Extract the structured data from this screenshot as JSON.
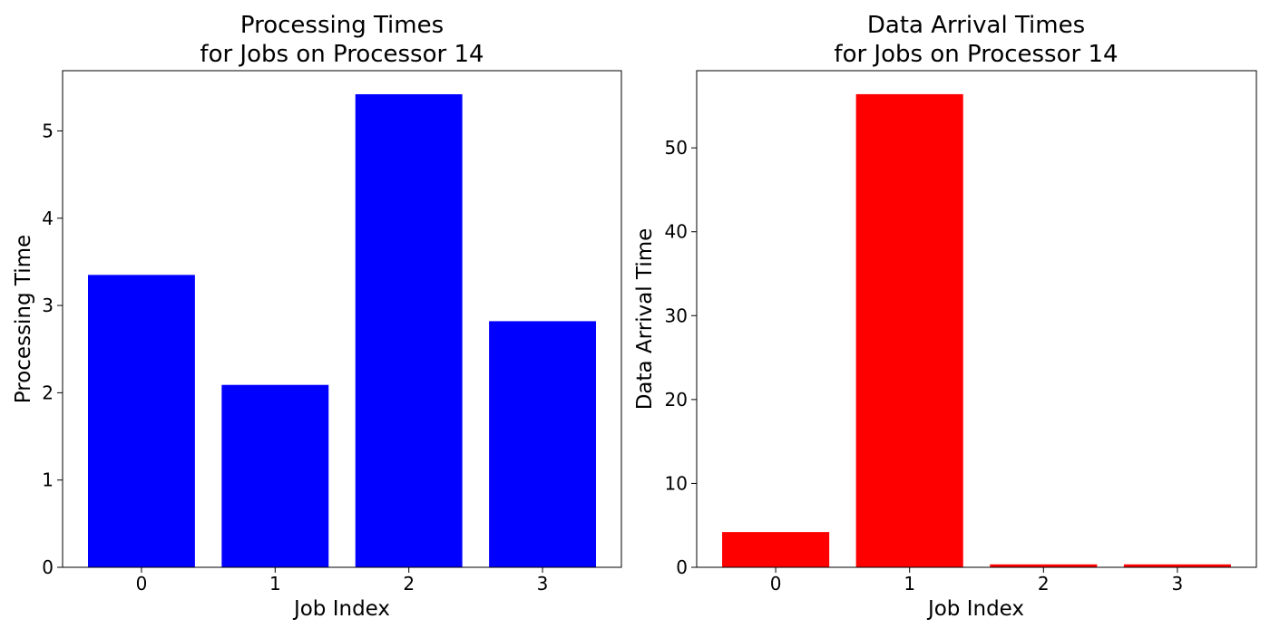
{
  "chart_data": [
    {
      "type": "bar",
      "title_lines": [
        "Processing Times",
        "for Jobs on Processor 14"
      ],
      "xlabel": "Job Index",
      "ylabel": "Processing Time",
      "categories": [
        "0",
        "1",
        "2",
        "3"
      ],
      "values": [
        3.35,
        2.09,
        5.42,
        2.82
      ],
      "color": "#0000ff",
      "ylim": [
        0,
        5.69
      ],
      "yticks": [
        0,
        1,
        2,
        3,
        4,
        5
      ],
      "grid": false
    },
    {
      "type": "bar",
      "title_lines": [
        "Data Arrival Times",
        "for Jobs on Processor 14"
      ],
      "xlabel": "Job Index",
      "ylabel": "Data Arrival Time",
      "categories": [
        "0",
        "1",
        "2",
        "3"
      ],
      "values": [
        4.2,
        56.4,
        0.35,
        0.35
      ],
      "color": "#ff0000",
      "ylim": [
        0,
        59.2
      ],
      "yticks": [
        0,
        10,
        20,
        30,
        40,
        50
      ],
      "grid": false
    }
  ]
}
